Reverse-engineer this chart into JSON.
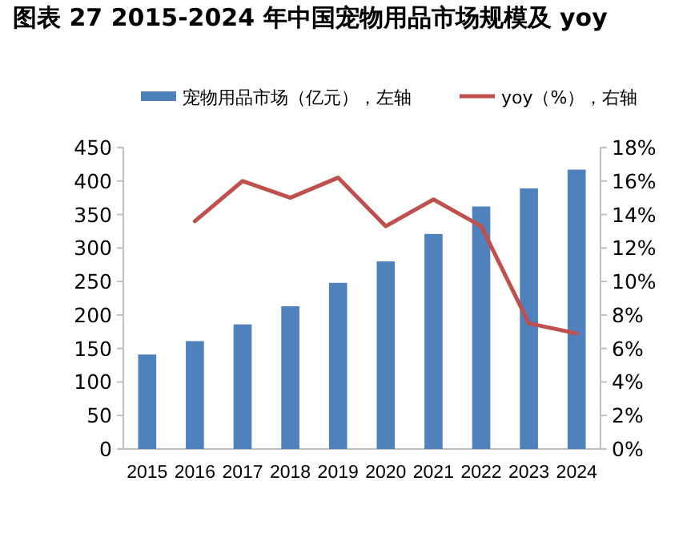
{
  "chart_data": {
    "type": "bar",
    "title": "图表 27 2015-2024 年中国宠物用品市场规模及 yoy",
    "categories": [
      "2015",
      "2016",
      "2017",
      "2018",
      "2019",
      "2020",
      "2021",
      "2022",
      "2023",
      "2024"
    ],
    "series": [
      {
        "name": "宠物用品市场（亿元），左轴",
        "color": "#4f81bd",
        "values": [
          141,
          161,
          186,
          213,
          248,
          280,
          321,
          362,
          389,
          417
        ]
      },
      {
        "name": "yoy（%），右轴",
        "type": "line",
        "axis": "y2",
        "color": "#c0504d",
        "values": [
          null,
          13.6,
          16.0,
          15.0,
          16.2,
          13.3,
          14.9,
          13.3,
          7.5,
          6.9
        ]
      }
    ],
    "ylim": [
      0,
      450
    ],
    "yticks": [
      0,
      50,
      100,
      150,
      200,
      250,
      300,
      350,
      400,
      450
    ],
    "y2lim": [
      0,
      18
    ],
    "y2ticks": [
      {
        "value": 0,
        "label": "0%"
      },
      {
        "value": 2,
        "label": "2%"
      },
      {
        "value": 4,
        "label": "4%"
      },
      {
        "value": 6,
        "label": "6%"
      },
      {
        "value": 8,
        "label": "8%"
      },
      {
        "value": 10,
        "label": "10%"
      },
      {
        "value": 12,
        "label": "12%"
      },
      {
        "value": 14,
        "label": "14%"
      },
      {
        "value": 16,
        "label": "16%"
      },
      {
        "value": 18,
        "label": "18%"
      }
    ],
    "legend": "top",
    "grid": false
  }
}
